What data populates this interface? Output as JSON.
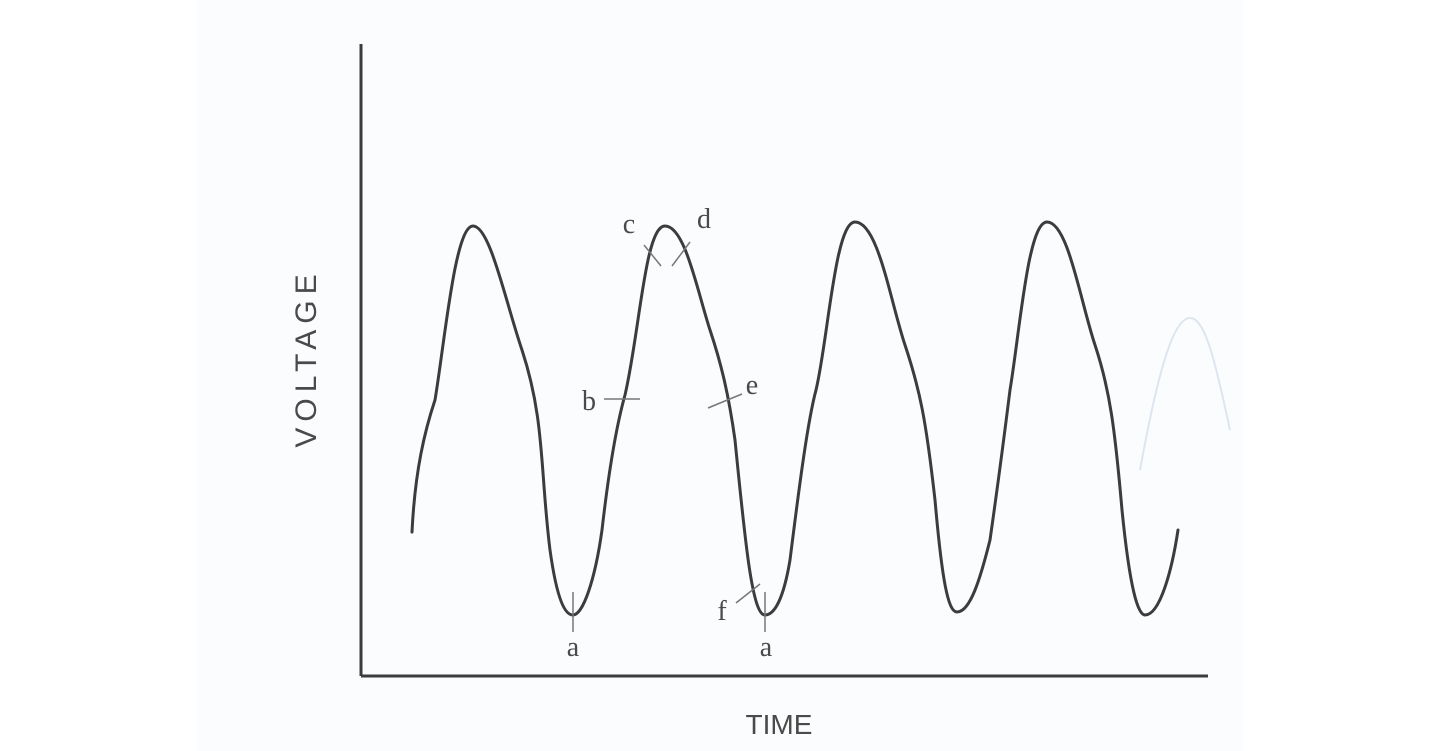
{
  "diagram": {
    "y_axis_title": "VOLTAGE",
    "x_axis_title": "TIME",
    "point_labels": {
      "a1": "a",
      "a2": "a",
      "b": "b",
      "c": "c",
      "d": "d",
      "e": "e",
      "f": "f"
    },
    "line_color": "#3c3c3c",
    "paper_color": "#fbfcfd"
  }
}
